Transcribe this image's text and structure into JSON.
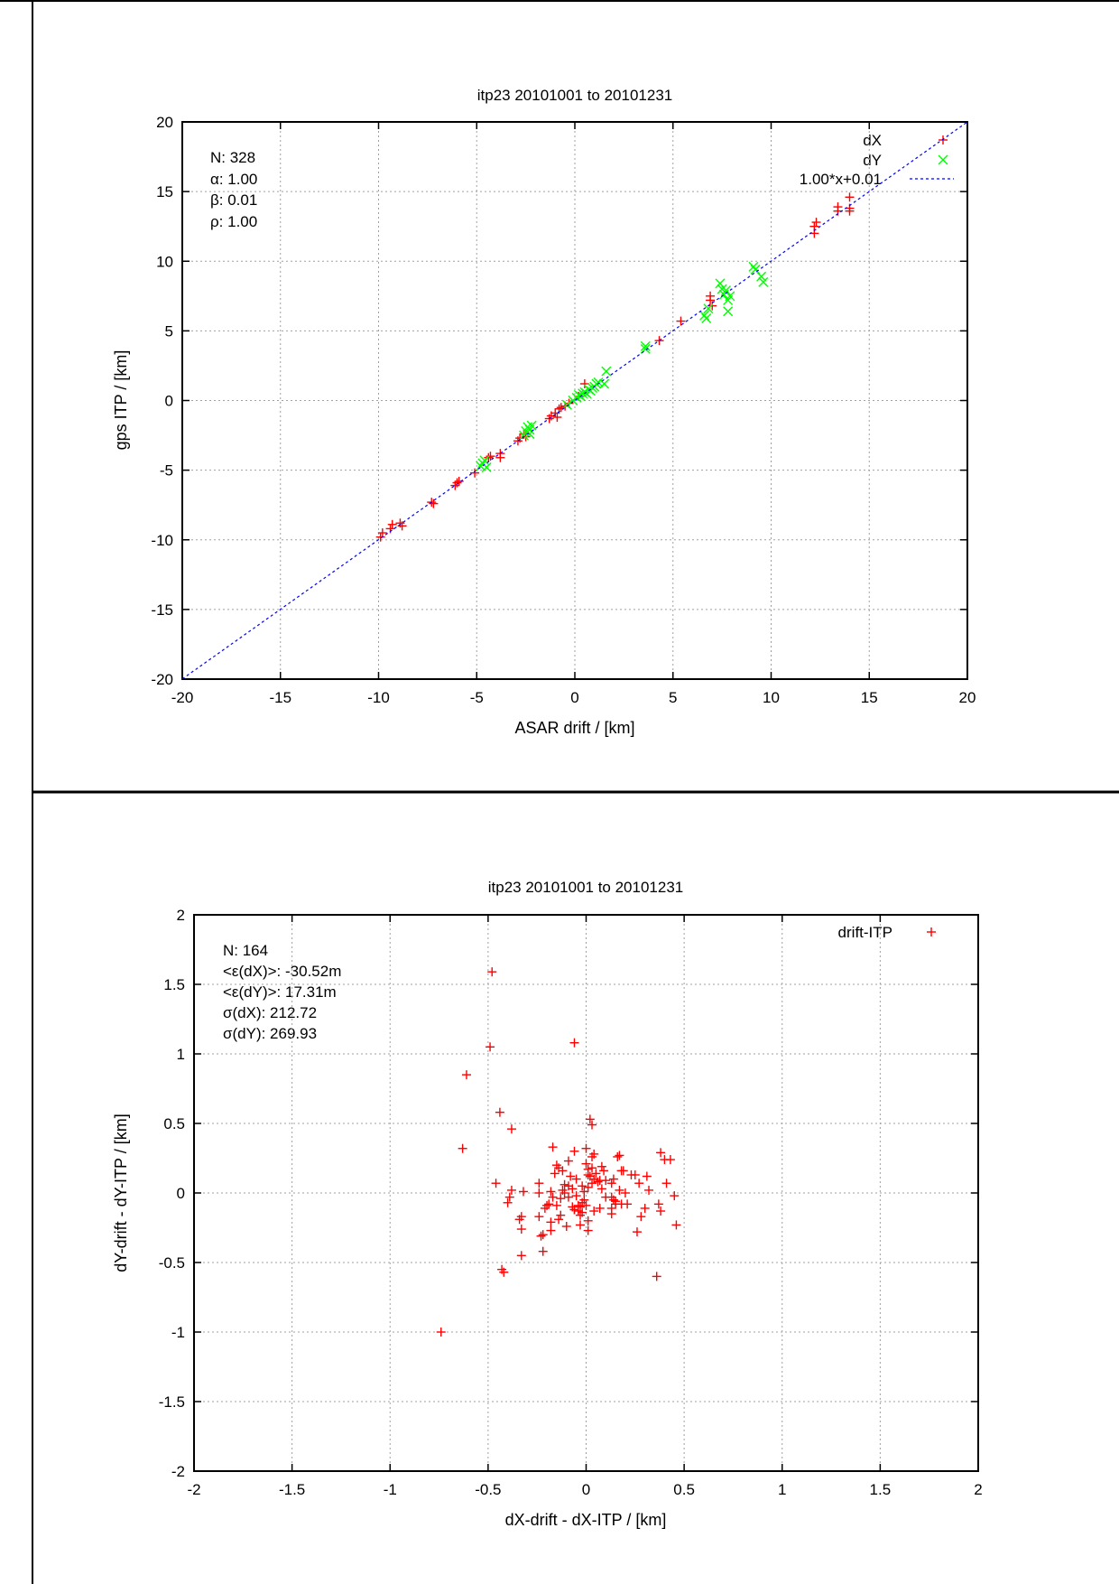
{
  "chart_data": [
    {
      "type": "scatter",
      "title": "itp23 20101001 to 20101231",
      "xlabel": "ASAR drift / [km]",
      "ylabel": "gps ITP / [km]",
      "xlim": [
        -20,
        20
      ],
      "ylim": [
        -20,
        20
      ],
      "xticks": [
        "-20",
        "-15",
        "-10",
        "-5",
        "0",
        "5",
        "10",
        "15",
        "20"
      ],
      "yticks": [
        "-20",
        "-15",
        "-10",
        "-5",
        "0",
        "5",
        "10",
        "15",
        "20"
      ],
      "xtick_values": [
        -20,
        -15,
        -10,
        -5,
        0,
        5,
        10,
        15,
        20
      ],
      "ytick_values": [
        -20,
        -15,
        -10,
        -5,
        0,
        5,
        10,
        15,
        20
      ],
      "grid": true,
      "legend_position": "top-right",
      "stats": [
        "N: 328",
        "α: 1.00",
        "β: 0.01",
        "ρ: 1.00"
      ],
      "series": [
        {
          "name": "dX",
          "marker": "plus",
          "color": "#ff0000",
          "points": [
            [
              -9.9,
              -9.8
            ],
            [
              -9.8,
              -9.5
            ],
            [
              -9.4,
              -9.2
            ],
            [
              -9.3,
              -8.9
            ],
            [
              -8.9,
              -8.8
            ],
            [
              -8.8,
              -9.0
            ],
            [
              -7.3,
              -7.3
            ],
            [
              -7.2,
              -7.4
            ],
            [
              -6.1,
              -6.1
            ],
            [
              -5.9,
              -5.8
            ],
            [
              -6.0,
              -5.9
            ],
            [
              -5.1,
              -5.2
            ],
            [
              -4.4,
              -4.1
            ],
            [
              -4.3,
              -4.0
            ],
            [
              -3.8,
              -4.1
            ],
            [
              -3.8,
              -3.8
            ],
            [
              -2.9,
              -2.9
            ],
            [
              -2.8,
              -2.7
            ],
            [
              -2.6,
              -2.4
            ],
            [
              -2.5,
              -2.6
            ],
            [
              -1.3,
              -1.3
            ],
            [
              -1.2,
              -1.1
            ],
            [
              -1.0,
              -0.9
            ],
            [
              -0.9,
              -1.2
            ],
            [
              -0.8,
              -0.6
            ],
            [
              -0.7,
              -0.5
            ],
            [
              -0.5,
              -0.4
            ],
            [
              -0.3,
              -0.2
            ],
            [
              0.5,
              1.2
            ],
            [
              0.2,
              0.3
            ],
            [
              4.3,
              4.3
            ],
            [
              5.4,
              5.7
            ],
            [
              6.9,
              7.2
            ],
            [
              6.9,
              7.5
            ],
            [
              7.0,
              6.8
            ],
            [
              12.2,
              12.0
            ],
            [
              12.2,
              12.5
            ],
            [
              12.3,
              12.8
            ],
            [
              13.4,
              13.6
            ],
            [
              13.4,
              13.9
            ],
            [
              14.0,
              14.6
            ],
            [
              14.0,
              13.8
            ],
            [
              14.0,
              13.6
            ]
          ]
        },
        {
          "name": "dY",
          "marker": "cross",
          "color": "#00ff00",
          "points": [
            [
              -4.8,
              -4.7
            ],
            [
              -4.7,
              -4.5
            ],
            [
              -4.6,
              -4.3
            ],
            [
              -4.5,
              -4.8
            ],
            [
              -2.6,
              -2.5
            ],
            [
              -2.5,
              -2.2
            ],
            [
              -2.4,
              -1.9
            ],
            [
              -2.3,
              -2.4
            ],
            [
              -2.3,
              -2.1
            ],
            [
              -2.2,
              -1.8
            ],
            [
              -0.4,
              -0.3
            ],
            [
              -0.1,
              0.0
            ],
            [
              0.1,
              0.2
            ],
            [
              0.2,
              0.4
            ],
            [
              0.3,
              0.3
            ],
            [
              0.4,
              0.5
            ],
            [
              0.5,
              0.6
            ],
            [
              0.6,
              0.5
            ],
            [
              0.7,
              0.8
            ],
            [
              0.8,
              0.7
            ],
            [
              0.9,
              0.9
            ],
            [
              1.0,
              1.0
            ],
            [
              1.1,
              1.2
            ],
            [
              1.2,
              1.3
            ],
            [
              1.5,
              1.2
            ],
            [
              1.6,
              2.1
            ],
            [
              3.6,
              3.7
            ],
            [
              3.6,
              3.9
            ],
            [
              6.6,
              6.1
            ],
            [
              6.7,
              5.9
            ],
            [
              6.8,
              6.6
            ],
            [
              7.4,
              8.4
            ],
            [
              7.5,
              8.0
            ],
            [
              7.6,
              7.6
            ],
            [
              7.7,
              7.9
            ],
            [
              7.8,
              7.2
            ],
            [
              7.8,
              6.4
            ],
            [
              7.9,
              7.5
            ],
            [
              9.1,
              9.6
            ],
            [
              9.2,
              9.4
            ],
            [
              9.5,
              8.9
            ],
            [
              9.6,
              8.5
            ]
          ]
        },
        {
          "name": "1.00*x+0.01",
          "type": "line",
          "style": "dashed",
          "color": "#0000ff",
          "slope": 1.0,
          "intercept": 0.01
        }
      ]
    },
    {
      "type": "scatter",
      "title": "itp23 20101001 to 20101231",
      "xlabel": "dX-drift - dX-ITP / [km]",
      "ylabel": "dY-drift - dY-ITP / [km]",
      "xlim": [
        -2,
        2
      ],
      "ylim": [
        -2,
        2
      ],
      "xticks": [
        "-2",
        "-1.5",
        "-1",
        "-0.5",
        "0",
        "0.5",
        "1",
        "1.5",
        "2"
      ],
      "yticks": [
        "-2",
        "-1.5",
        "-1",
        "-0.5",
        "0",
        "0.5",
        "1",
        "1.5",
        "2"
      ],
      "xtick_values": [
        -2,
        -1.5,
        -1,
        -0.5,
        0,
        0.5,
        1,
        1.5,
        2
      ],
      "ytick_values": [
        -2,
        -1.5,
        -1,
        -0.5,
        0,
        0.5,
        1,
        1.5,
        2
      ],
      "grid": true,
      "legend_position": "top-right",
      "stats": [
        "N: 164",
        "<ε(dX)>:  -30.52m",
        "<ε(dY)>: 17.31m",
        "σ(dX):  212.72",
        "σ(dY):  269.93"
      ],
      "series": [
        {
          "name": "drift-ITP",
          "marker": "plus",
          "color": "#ff0000",
          "points": [
            [
              -0.48,
              1.59
            ],
            [
              -0.49,
              1.05
            ],
            [
              -0.06,
              1.08
            ],
            [
              -0.61,
              0.85
            ],
            [
              -0.44,
              0.58
            ],
            [
              -0.38,
              0.46
            ],
            [
              -0.63,
              0.32
            ],
            [
              0.02,
              0.53
            ],
            [
              0.03,
              0.49
            ],
            [
              -0.74,
              -1.0
            ],
            [
              0.36,
              -0.6
            ],
            [
              -0.43,
              -0.55
            ],
            [
              -0.42,
              -0.57
            ],
            [
              -0.46,
              0.07
            ],
            [
              -0.33,
              -0.45
            ],
            [
              0.46,
              -0.23
            ],
            [
              0.45,
              -0.02
            ],
            [
              0.38,
              0.29
            ],
            [
              0.43,
              0.24
            ],
            [
              0.4,
              0.24
            ],
            [
              0.41,
              0.07
            ],
            [
              0.37,
              -0.08
            ],
            [
              0.38,
              -0.13
            ],
            [
              0.26,
              -0.28
            ],
            [
              0.28,
              -0.17
            ],
            [
              -0.17,
              0.33
            ],
            [
              -0.06,
              0.3
            ],
            [
              0.0,
              0.32
            ],
            [
              0.03,
              0.26
            ],
            [
              -0.15,
              0.2
            ],
            [
              -0.14,
              0.18
            ],
            [
              -0.12,
              0.16
            ],
            [
              -0.09,
              0.23
            ],
            [
              0.17,
              0.27
            ],
            [
              0.16,
              0.26
            ],
            [
              0.08,
              0.19
            ],
            [
              0.18,
              0.16
            ],
            [
              0.19,
              0.16
            ],
            [
              0.25,
              0.13
            ],
            [
              0.31,
              0.12
            ],
            [
              0.27,
              0.07
            ],
            [
              0.14,
              0.1
            ],
            [
              0.13,
              0.07
            ],
            [
              0.1,
              0.09
            ],
            [
              -0.24,
              0.07
            ],
            [
              -0.24,
              0.0
            ],
            [
              -0.38,
              0.02
            ],
            [
              -0.39,
              -0.03
            ],
            [
              -0.4,
              -0.07
            ],
            [
              -0.32,
              0.01
            ],
            [
              -0.33,
              -0.17
            ],
            [
              -0.34,
              -0.19
            ],
            [
              -0.33,
              -0.26
            ],
            [
              -0.24,
              -0.17
            ],
            [
              -0.22,
              -0.3
            ],
            [
              -0.23,
              -0.31
            ],
            [
              -0.22,
              -0.42
            ],
            [
              -0.18,
              -0.21
            ],
            [
              -0.18,
              -0.27
            ],
            [
              -0.1,
              -0.24
            ],
            [
              -0.03,
              -0.23
            ],
            [
              0.01,
              -0.2
            ],
            [
              0.01,
              -0.27
            ],
            [
              -0.06,
              -0.12
            ],
            [
              -0.04,
              -0.09
            ],
            [
              -0.02,
              -0.07
            ],
            [
              -0.01,
              -0.05
            ],
            [
              -0.03,
              -0.1
            ],
            [
              -0.05,
              -0.02
            ],
            [
              -0.07,
              0.03
            ],
            [
              -0.09,
              0.05
            ],
            [
              -0.11,
              0.06
            ],
            [
              -0.12,
              0.02
            ],
            [
              -0.13,
              -0.04
            ],
            [
              -0.15,
              -0.09
            ],
            [
              -0.19,
              -0.08
            ],
            [
              -0.2,
              -0.09
            ],
            [
              -0.21,
              -0.11
            ],
            [
              -0.18,
              0.01
            ],
            [
              -0.17,
              -0.03
            ],
            [
              -0.01,
              0.01
            ],
            [
              0.01,
              0.04
            ],
            [
              0.03,
              0.07
            ],
            [
              0.04,
              0.1
            ],
            [
              0.02,
              0.12
            ],
            [
              0.05,
              0.14
            ],
            [
              0.03,
              0.18
            ],
            [
              0.07,
              0.09
            ],
            [
              0.08,
              0.03
            ],
            [
              0.1,
              -0.03
            ],
            [
              0.13,
              -0.03
            ],
            [
              0.14,
              -0.05
            ],
            [
              0.15,
              -0.06
            ],
            [
              0.15,
              -0.08
            ],
            [
              0.13,
              -0.11
            ],
            [
              0.13,
              -0.15
            ],
            [
              0.18,
              -0.08
            ],
            [
              0.21,
              -0.08
            ],
            [
              0.2,
              0.0
            ],
            [
              0.17,
              0.02
            ],
            [
              0.07,
              -0.11
            ],
            [
              0.04,
              -0.13
            ],
            [
              -0.02,
              -0.14
            ],
            [
              -0.04,
              -0.13
            ],
            [
              -0.06,
              -0.12
            ],
            [
              -0.07,
              -0.1
            ],
            [
              -0.09,
              -0.03
            ],
            [
              -0.11,
              0.0
            ],
            [
              0.0,
              -0.09
            ],
            [
              -0.03,
              -0.16
            ],
            [
              -0.13,
              -0.16
            ],
            [
              -0.14,
              -0.19
            ],
            [
              -0.08,
              0.12
            ],
            [
              -0.05,
              0.1
            ],
            [
              0.01,
              0.17
            ],
            [
              0.0,
              0.21
            ],
            [
              0.04,
              0.28
            ],
            [
              0.06,
              0.08
            ],
            [
              -0.16,
              0.14
            ],
            [
              0.3,
              -0.11
            ],
            [
              0.32,
              0.02
            ],
            [
              0.23,
              0.13
            ],
            [
              0.01,
              0.13
            ],
            [
              -0.02,
              0.05
            ],
            [
              0.09,
              0.16
            ]
          ]
        }
      ]
    }
  ]
}
